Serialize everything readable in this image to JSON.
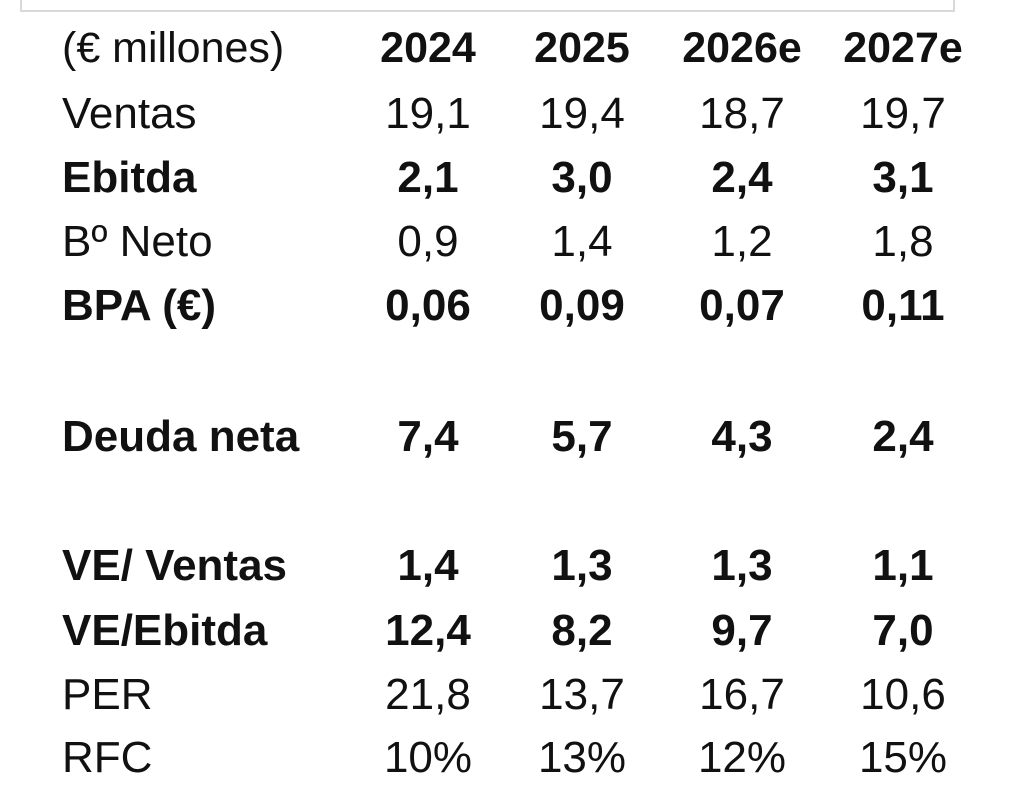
{
  "table": {
    "header": {
      "label": "(€ millones)",
      "years": [
        "2024",
        "2025",
        "2026e",
        "2027e"
      ]
    },
    "rows": [
      {
        "label": "Ventas",
        "values": [
          "19,1",
          "19,4",
          "18,7",
          "19,7"
        ]
      },
      {
        "label": "Ebitda",
        "values": [
          "2,1",
          "3,0",
          "2,4",
          "3,1"
        ]
      },
      {
        "label": "Bº Neto",
        "values": [
          "0,9",
          "1,4",
          "1,2",
          "1,8"
        ]
      },
      {
        "label": "BPA (€)",
        "values": [
          "0,06",
          "0,09",
          "0,07",
          "0,11"
        ]
      },
      {
        "label": "Deuda neta",
        "values": [
          "7,4",
          "5,7",
          "4,3",
          "2,4"
        ]
      },
      {
        "label": "VE/ Ventas",
        "values": [
          "1,4",
          "1,3",
          "1,3",
          "1,1"
        ]
      },
      {
        "label": "VE/Ebitda",
        "values": [
          "12,4",
          "8,2",
          "9,7",
          "7,0"
        ]
      },
      {
        "label": "PER",
        "values": [
          "21,8",
          "13,7",
          "16,7",
          "10,6"
        ]
      },
      {
        "label": "RFC",
        "values": [
          "10%",
          "13%",
          "12%",
          "15%"
        ]
      }
    ]
  }
}
